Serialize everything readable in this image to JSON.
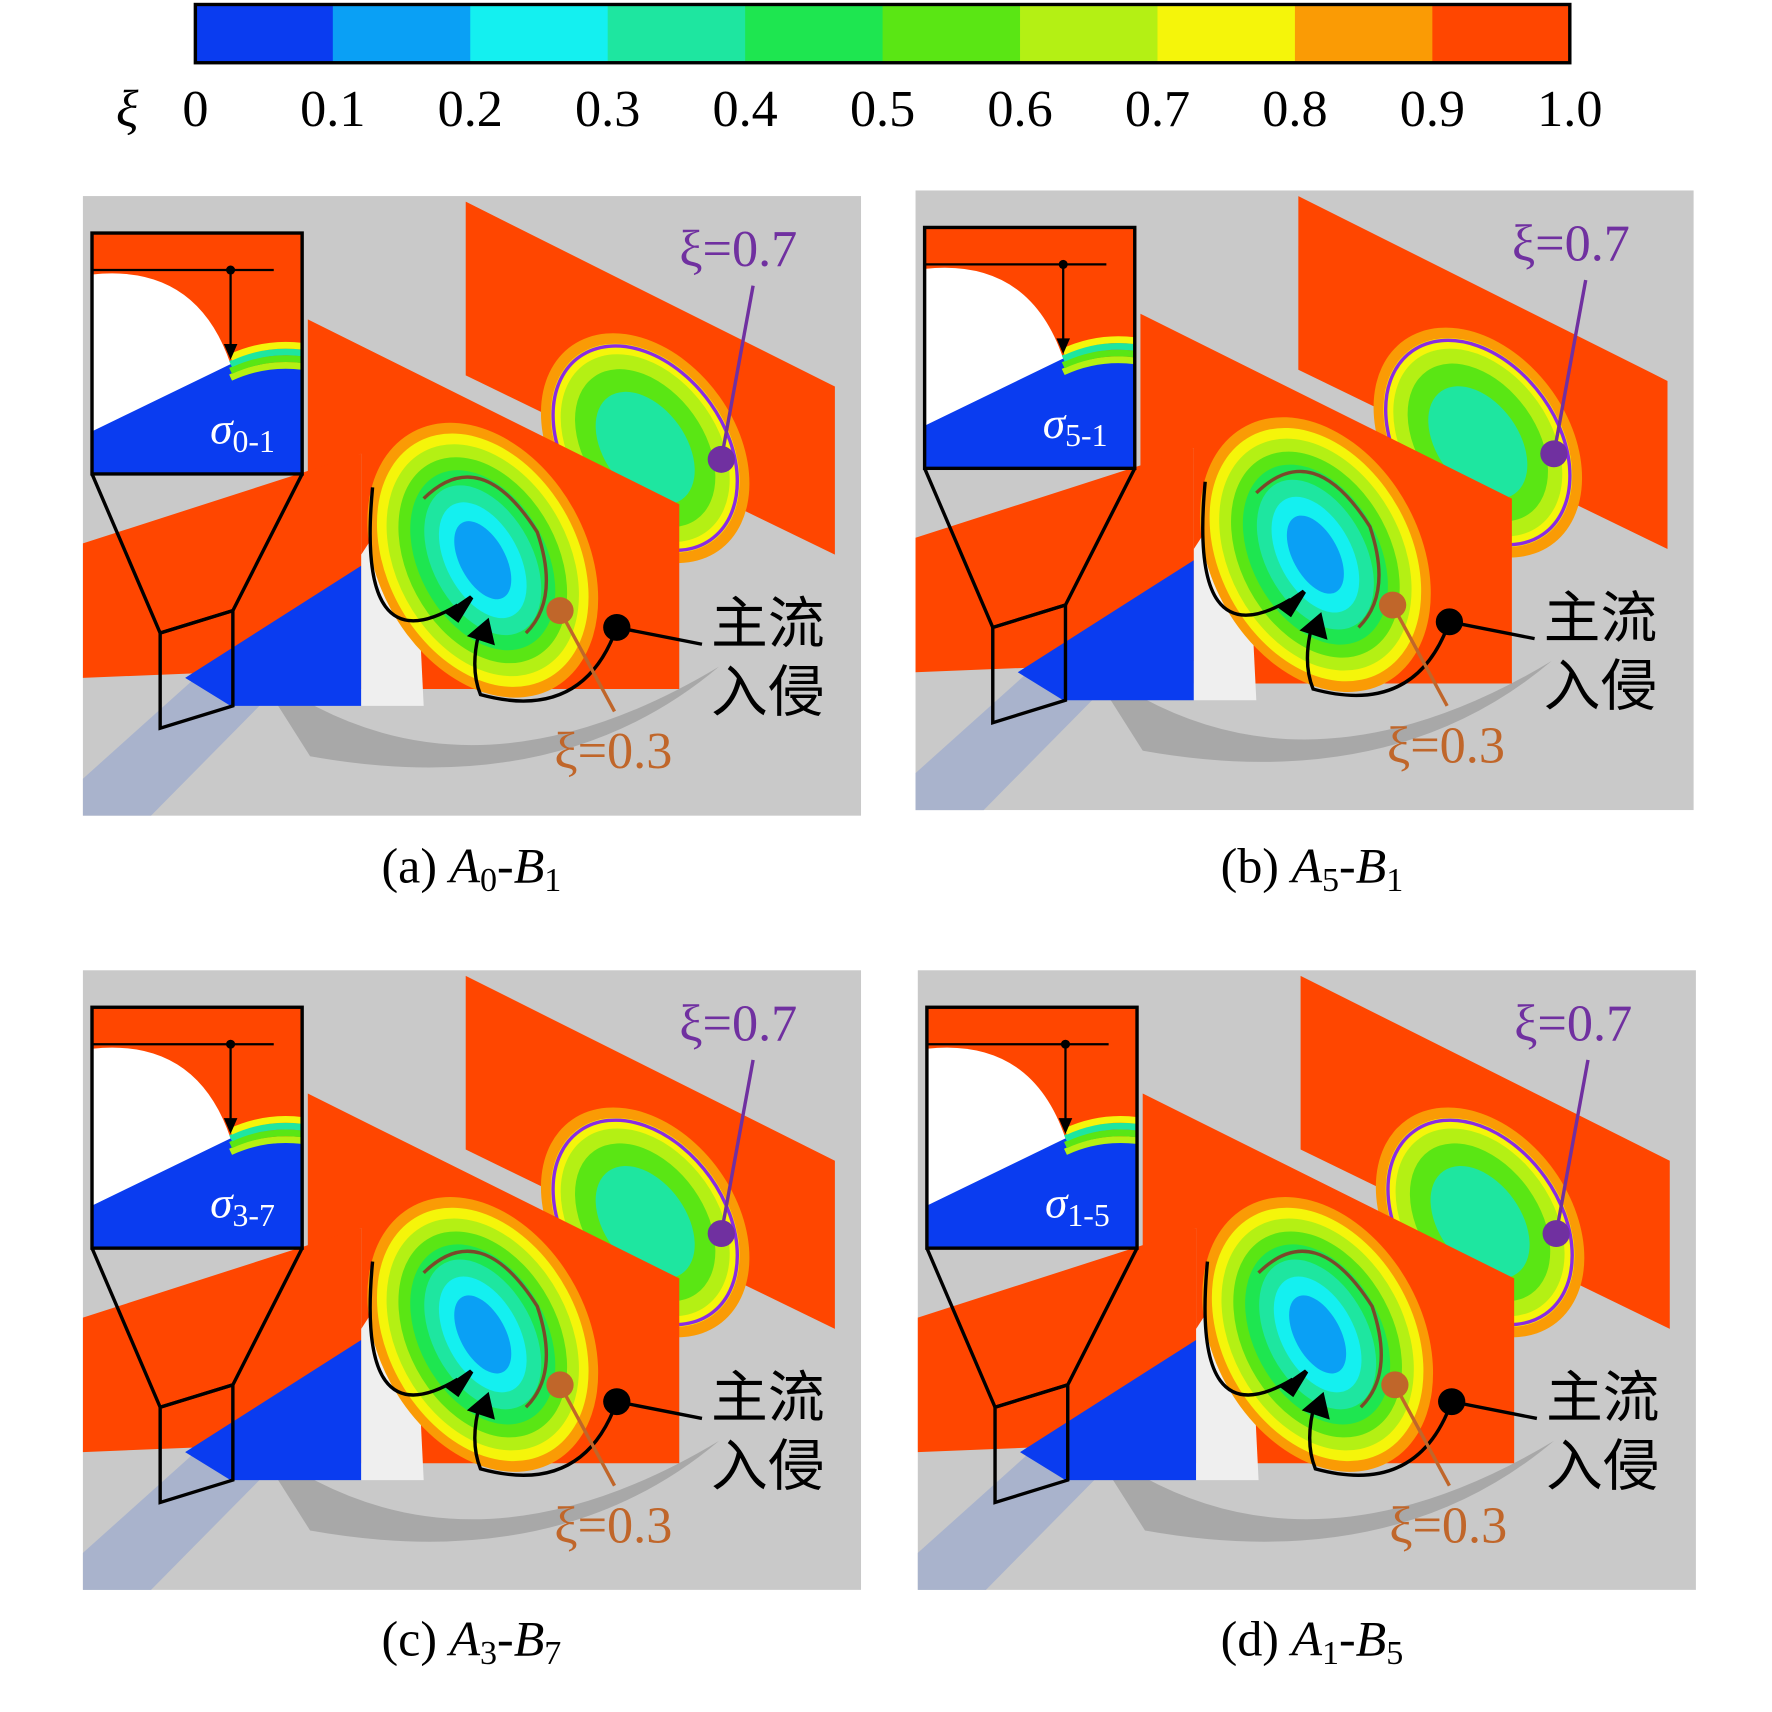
{
  "colorbar": {
    "symbol": "ξ",
    "ticks": [
      "0",
      "0.1",
      "0.2",
      "0.3",
      "0.4",
      "0.5",
      "0.6",
      "0.7",
      "0.8",
      "0.9",
      "1.0"
    ],
    "colors": [
      "#0a3cf0",
      "#0aa0f5",
      "#14f0f0",
      "#1ee6a0",
      "#1ee650",
      "#5ae614",
      "#b4f014",
      "#f5f50a",
      "#fa9b05",
      "#ff4600"
    ]
  },
  "panels": [
    {
      "caption": {
        "tag": "(a) ",
        "a": "A",
        "a_sub": "0",
        "sep": "-",
        "b": "B",
        "b_sub": "1"
      },
      "inset_label": {
        "symbol": "σ",
        "sub": "0-1"
      },
      "annotations": {
        "upper": "ξ=0.7",
        "lower": "ξ=0.3",
        "flow_1": "主流",
        "flow_2": "入侵"
      }
    },
    {
      "caption": {
        "tag": "(b) ",
        "a": "A",
        "a_sub": "5",
        "sep": "-",
        "b": "B",
        "b_sub": "1"
      },
      "inset_label": {
        "symbol": "σ",
        "sub": "5-1"
      },
      "annotations": {
        "upper": "ξ=0.7",
        "lower": "ξ=0.3",
        "flow_1": "主流",
        "flow_2": "入侵"
      }
    },
    {
      "caption": {
        "tag": "(c) ",
        "a": "A",
        "a_sub": "3",
        "sep": "-",
        "b": "B",
        "b_sub": "7"
      },
      "inset_label": {
        "symbol": "σ",
        "sub": "3-7"
      },
      "annotations": {
        "upper": "ξ=0.7",
        "lower": "ξ=0.3",
        "flow_1": "主流",
        "flow_2": "入侵"
      }
    },
    {
      "caption": {
        "tag": "(d) ",
        "a": "A",
        "a_sub": "1",
        "sep": "-",
        "b": "B",
        "b_sub": "5"
      },
      "inset_label": {
        "symbol": "σ",
        "sub": "1-5"
      },
      "annotations": {
        "upper": "ξ=0.7",
        "lower": "ξ=0.3",
        "flow_1": "主流",
        "flow_2": "入侵"
      }
    }
  ]
}
